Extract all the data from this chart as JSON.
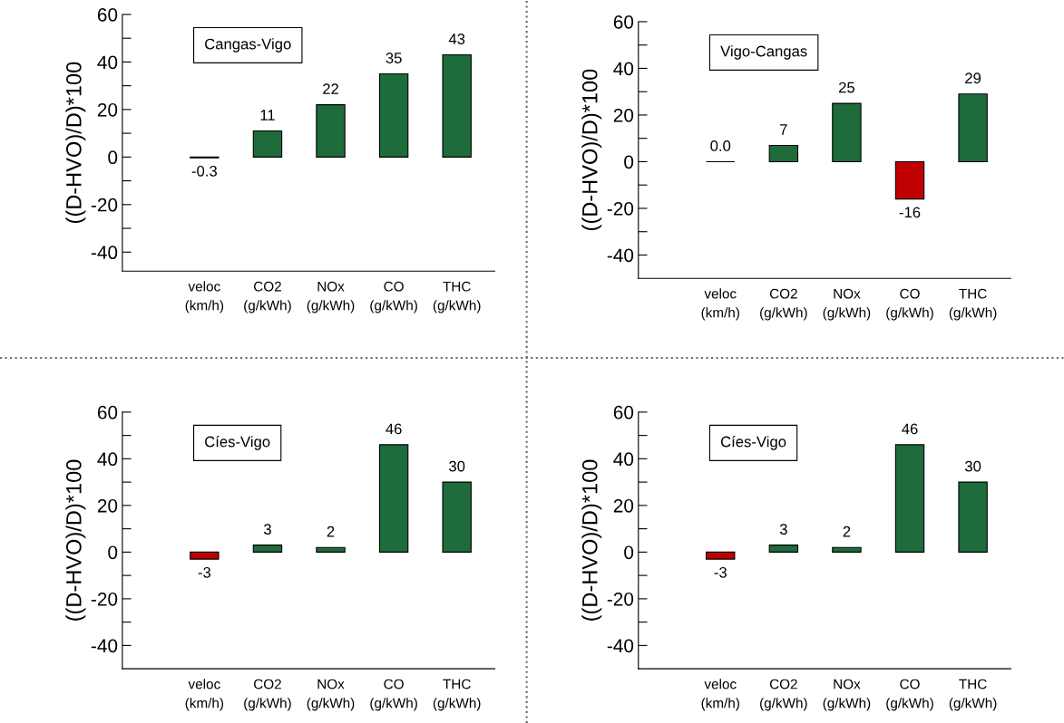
{
  "chart_data": [
    {
      "type": "bar",
      "title": "Cangas-Vigo",
      "ylabel": "((D-HVO)/D)*100",
      "categories": [
        "veloc\n(km/h)",
        "CO2\n(g/kWh)",
        "NOx\n(g/kWh)",
        "CO\n(g/kWh)",
        "THC\n(g/kWh)"
      ],
      "values": [
        -0.3,
        11,
        22,
        35,
        43
      ],
      "value_labels": [
        "-0.3",
        "11",
        "22",
        "35",
        "43"
      ],
      "colors": [
        "#000000",
        "#1e6b3c",
        "#1e6b3c",
        "#1e6b3c",
        "#1e6b3c"
      ],
      "ylim": [
        -48,
        60
      ],
      "yticks": [
        {
          "value": -40,
          "label": "-40"
        },
        {
          "value": -30,
          "label": null
        },
        {
          "value": -20,
          "label": "-20"
        },
        {
          "value": -10,
          "label": null
        },
        0,
        {
          "value": 10,
          "label": null
        },
        20,
        {
          "value": 30,
          "label": null
        },
        40,
        {
          "value": 50,
          "label": null
        },
        60
      ]
    },
    {
      "type": "bar",
      "title": "Vigo-Cangas",
      "ylabel": "((D-HVO)/D)*100",
      "categories": [
        "veloc\n(km/h)",
        "CO2\n(g/kWh)",
        "NOx\n(g/kWh)",
        "CO\n(g/kWh)",
        "THC\n(g/kWh)"
      ],
      "values": [
        0.0,
        7,
        25,
        -16,
        29
      ],
      "value_labels": [
        "0.0",
        "7",
        "25",
        "-16",
        "29"
      ],
      "colors": [
        "#000000",
        "#1e6b3c",
        "#1e6b3c",
        "#c00000",
        "#1e6b3c"
      ],
      "ylim": [
        -50,
        60
      ],
      "yticks": [
        {
          "value": -40,
          "label": "-40"
        },
        {
          "value": -30,
          "label": null
        },
        {
          "value": -20,
          "label": "-20"
        },
        {
          "value": -10,
          "label": null
        },
        0,
        {
          "value": 10,
          "label": null
        },
        20,
        {
          "value": 30,
          "label": null
        },
        40,
        {
          "value": 50,
          "label": null
        },
        60
      ]
    },
    {
      "type": "bar",
      "title": "Cíes-Vigo",
      "ylabel": "((D-HVO)/D)*100",
      "categories": [
        "veloc\n(km/h)",
        "CO2\n(g/kWh)",
        "NOx\n(g/kWh)",
        "CO\n(g/kWh)",
        "THC\n(g/kWh)"
      ],
      "values": [
        -3,
        3,
        2,
        46,
        30
      ],
      "value_labels": [
        "-3",
        "3",
        "2",
        "46",
        "30"
      ],
      "colors": [
        "#c00000",
        "#1e6b3c",
        "#1e6b3c",
        "#1e6b3c",
        "#1e6b3c"
      ],
      "ylim": [
        -50,
        60
      ],
      "yticks": [
        {
          "value": -40,
          "label": "-40"
        },
        {
          "value": -30,
          "label": null
        },
        {
          "value": -20,
          "label": "-20"
        },
        {
          "value": -10,
          "label": null
        },
        0,
        {
          "value": 10,
          "label": null
        },
        20,
        {
          "value": 30,
          "label": null
        },
        40,
        {
          "value": 50,
          "label": null
        },
        60
      ]
    },
    {
      "type": "bar",
      "title": "Cíes-Vigo",
      "ylabel": "((D-HVO)/D)*100",
      "categories": [
        "veloc\n(km/h)",
        "CO2\n(g/kWh)",
        "NOx\n(g/kWh)",
        "CO\n(g/kWh)",
        "THC\n(g/kWh)"
      ],
      "values": [
        -3,
        3,
        2,
        46,
        30
      ],
      "value_labels": [
        "-3",
        "3",
        "2",
        "46",
        "30"
      ],
      "colors": [
        "#c00000",
        "#1e6b3c",
        "#1e6b3c",
        "#1e6b3c",
        "#1e6b3c"
      ],
      "ylim": [
        -50,
        60
      ],
      "yticks": [
        {
          "value": -40,
          "label": "-40"
        },
        {
          "value": -30,
          "label": null
        },
        {
          "value": -20,
          "label": "-20"
        },
        {
          "value": -10,
          "label": null
        },
        0,
        {
          "value": 10,
          "label": null
        },
        20,
        {
          "value": 30,
          "label": null
        },
        40,
        {
          "value": 50,
          "label": null
        },
        60
      ]
    }
  ]
}
